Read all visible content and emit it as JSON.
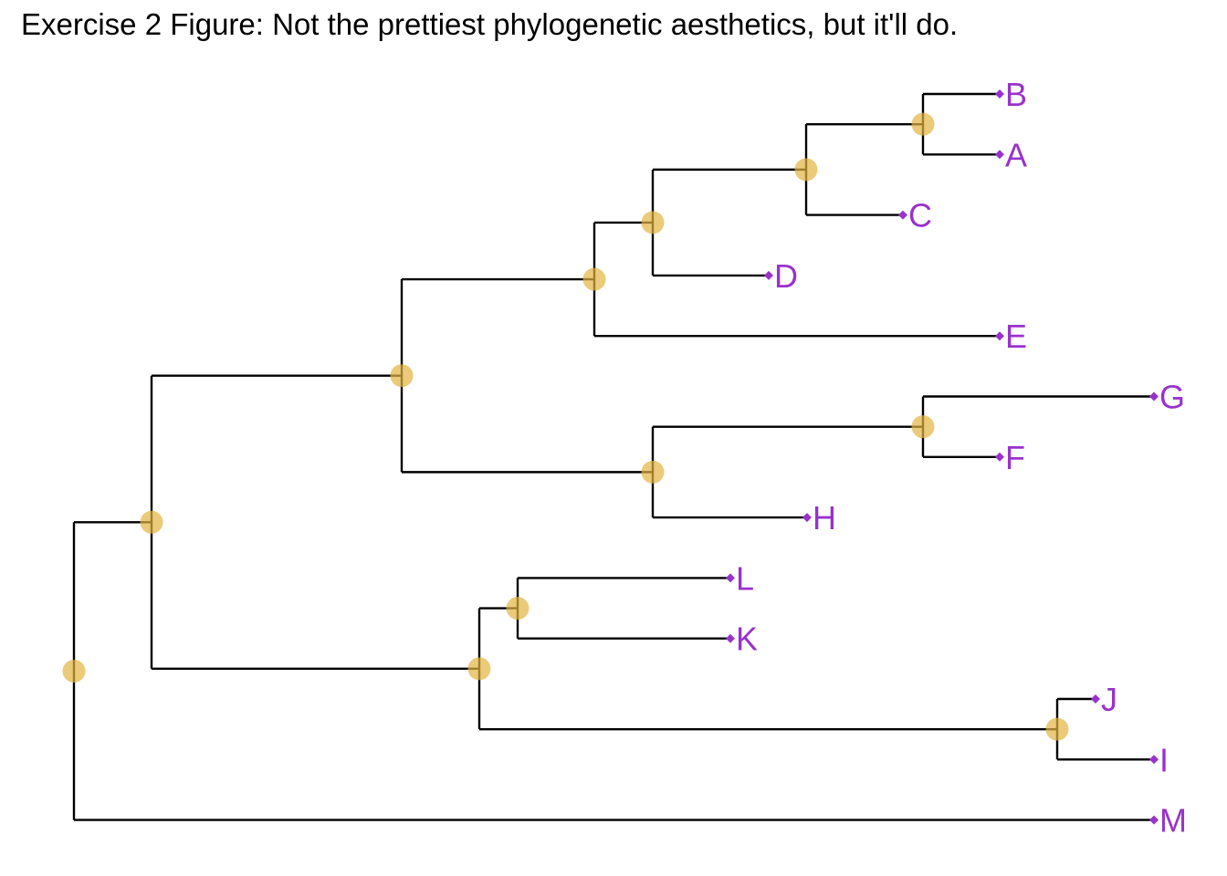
{
  "title": "Exercise 2 Figure: Not the prettiest phylogenetic aesthetics, but it'll do.",
  "colors": {
    "branch": "#000000",
    "node": "#e3b341",
    "tip": "#9932cc",
    "background": "#ffffff"
  },
  "tree": {
    "name": "n_root",
    "children": [
      {
        "name": "n_ingroup",
        "children": [
          {
            "name": "n_ABCDEFGH",
            "children": [
              {
                "name": "n_ABCDE",
                "children": [
                  {
                    "name": "n_ABCD",
                    "children": [
                      {
                        "name": "n_ABC",
                        "children": [
                          {
                            "name": "n_AB",
                            "children": [
                              {
                                "name": "B"
                              },
                              {
                                "name": "A"
                              }
                            ]
                          },
                          {
                            "name": "C"
                          }
                        ]
                      },
                      {
                        "name": "D"
                      }
                    ]
                  },
                  {
                    "name": "E"
                  }
                ]
              },
              {
                "name": "n_FGH",
                "children": [
                  {
                    "name": "n_FG",
                    "children": [
                      {
                        "name": "G"
                      },
                      {
                        "name": "F"
                      }
                    ]
                  },
                  {
                    "name": "H"
                  }
                ]
              }
            ]
          },
          {
            "name": "n_IJKL",
            "children": [
              {
                "name": "n_KL",
                "children": [
                  {
                    "name": "L"
                  },
                  {
                    "name": "K"
                  }
                ]
              },
              {
                "name": "n_IJ",
                "children": [
                  {
                    "name": "J"
                  },
                  {
                    "name": "I"
                  }
                ]
              }
            ]
          }
        ]
      },
      {
        "name": "M"
      }
    ]
  }
}
